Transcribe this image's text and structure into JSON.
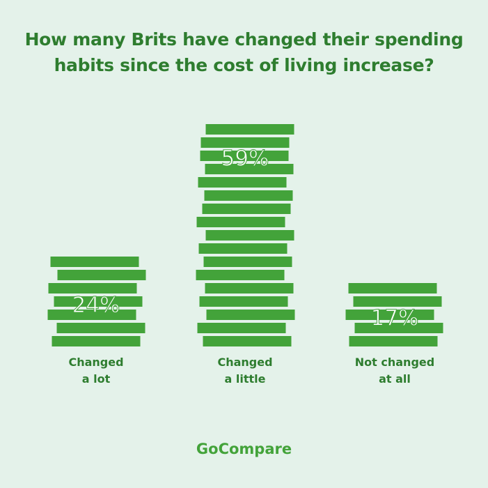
{
  "title_lines": [
    "How many Brits have changed their spending",
    "habits since the cost of living increase?"
  ],
  "brand": "GoCompare",
  "colors": {
    "background": "#e4f2ea",
    "bar": "#43a33a",
    "text": "#2e7d2f",
    "value_text": "#ffffff"
  },
  "chart_data": {
    "type": "bar",
    "style": "stacked-coin-bars",
    "categories": [
      "Changed a lot",
      "Changed a little",
      "Not changed at all"
    ],
    "category_label_lines": [
      [
        "Changed",
        "a lot"
      ],
      [
        "Changed",
        "a little"
      ],
      [
        "Not changed",
        "at all"
      ]
    ],
    "values": [
      24,
      59,
      17
    ],
    "value_labels": [
      "24%",
      "59%",
      "17%"
    ],
    "unit": "%",
    "legend": "none",
    "grid": false
  }
}
